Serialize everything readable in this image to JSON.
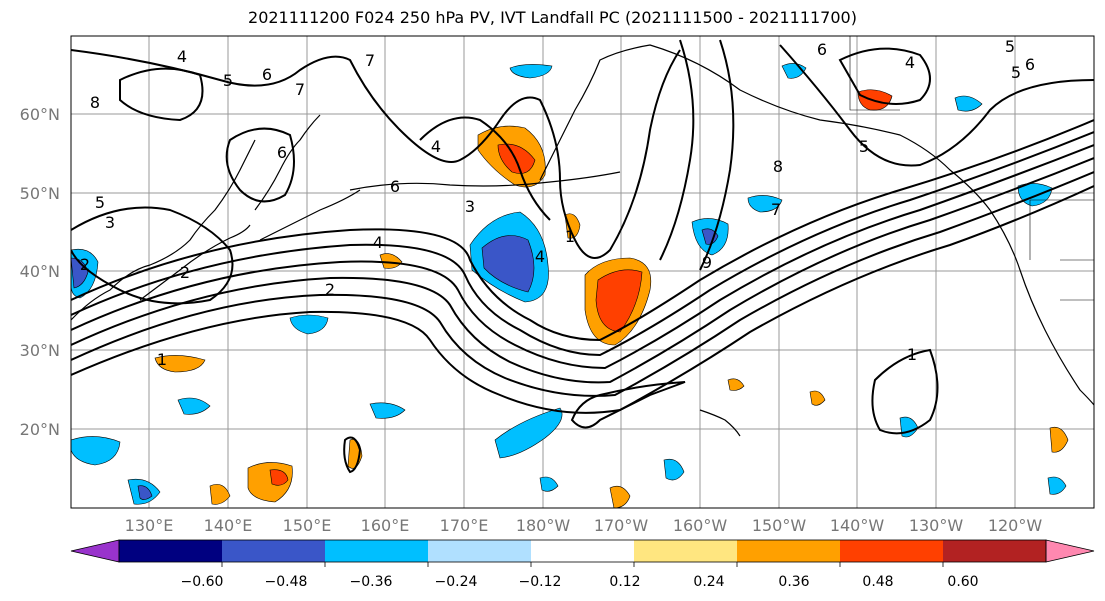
{
  "title": "2021111200 F024 250 hPa PV, IVT Landfall PC (2021111500 - 2021111700)",
  "map": {
    "lat_labels": [
      "60°N",
      "50°N",
      "40°N",
      "30°N",
      "20°N"
    ],
    "lon_labels": [
      "130°E",
      "140°E",
      "150°E",
      "160°E",
      "170°E",
      "180°W",
      "170°W",
      "160°W",
      "150°W",
      "140°W",
      "130°W",
      "120°W"
    ],
    "contour_labels": [
      "4",
      "5",
      "6",
      "7",
      "8",
      "7",
      "6",
      "5",
      "3",
      "2",
      "2",
      "1",
      "4",
      "6",
      "3",
      "4",
      "4",
      "1",
      "8",
      "7",
      "9",
      "6",
      "5",
      "4",
      "5",
      "6",
      "5",
      "1",
      "2"
    ]
  },
  "colorbar": {
    "ticks": [
      "−0.60",
      "−0.48",
      "−0.36",
      "−0.24",
      "−0.12",
      "0.12",
      "0.24",
      "0.36",
      "0.48",
      "0.60"
    ],
    "colors": [
      "#9933cc",
      "#000080",
      "#3a56c8",
      "#00bfff",
      "#b0e0ff",
      "#ffffff",
      "#ffe680",
      "#ffa000",
      "#ff4000",
      "#b22222",
      "#ff88b0"
    ]
  }
}
